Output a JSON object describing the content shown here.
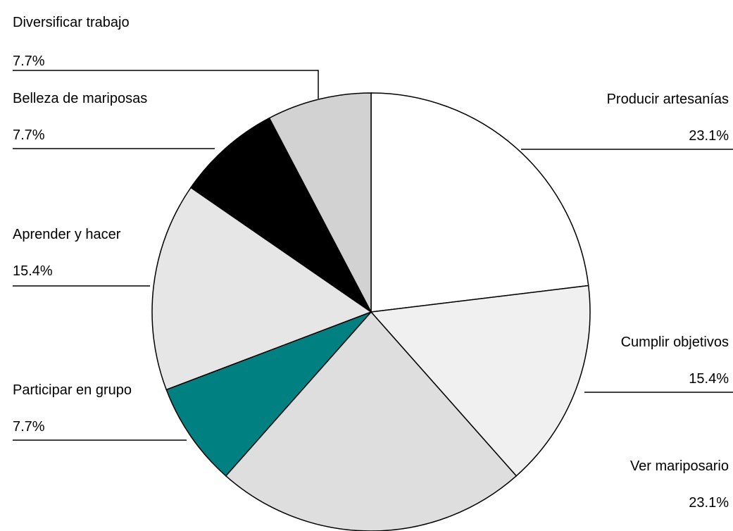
{
  "chart_data": {
    "type": "pie",
    "categories": [
      "Producir artesanías",
      "Cumplir objetivos",
      "Ver mariposario",
      "Participar en grupo",
      "Aprender y hacer",
      "Belleza de mariposas",
      "Diversificar trabajo"
    ],
    "values": [
      23.1,
      15.4,
      23.1,
      7.7,
      15.4,
      7.7,
      7.7
    ],
    "value_labels": [
      "23.1%",
      "15.4%",
      "23.1%",
      "7.7%",
      "15.4%",
      "7.7%",
      "7.7%"
    ],
    "colors": [
      "#ffffff",
      "#f0f0f0",
      "#dedede",
      "#008080",
      "#e6e6e6",
      "#000000",
      "#d2d2d2"
    ]
  }
}
